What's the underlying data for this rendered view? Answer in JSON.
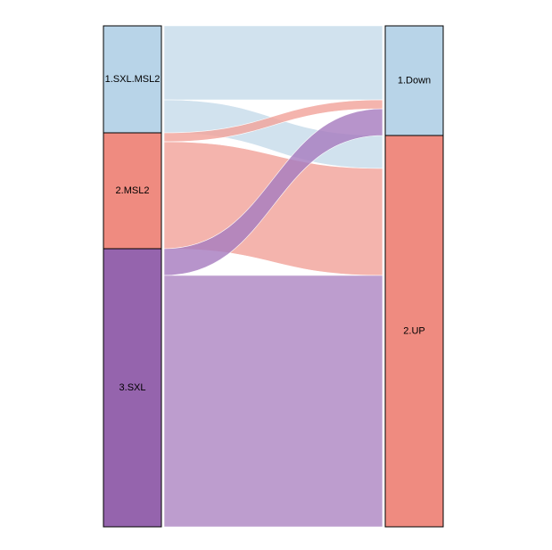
{
  "chart_data": {
    "type": "alluvial",
    "left_axis": {
      "nodes": [
        {
          "label": "1.SXL.MSL2",
          "value": 120,
          "color": "#b8d4e8"
        },
        {
          "label": "2.MSL2",
          "value": 130,
          "color": "#ef8b80"
        },
        {
          "label": "3.SXL",
          "value": 312,
          "color": "#9564ad"
        }
      ]
    },
    "right_axis": {
      "nodes": [
        {
          "label": "1.Down",
          "value": 123,
          "color": "#b8d4e8"
        },
        {
          "label": "2.UP",
          "value": 439,
          "color": "#ef8b80"
        }
      ]
    },
    "flows": [
      {
        "from": "1.SXL.MSL2",
        "to": "1.Down",
        "value": 83,
        "color": "#c7dcea"
      },
      {
        "from": "1.SXL.MSL2",
        "to": "2.UP",
        "value": 37,
        "color": "#c7dcea"
      },
      {
        "from": "2.MSL2",
        "to": "1.Down",
        "value": 10,
        "color": "#f2a49b"
      },
      {
        "from": "2.MSL2",
        "to": "2.UP",
        "value": 120,
        "color": "#f2a49b"
      },
      {
        "from": "3.SXL",
        "to": "1.Down",
        "value": 30,
        "color": "#a77cbf"
      },
      {
        "from": "3.SXL",
        "to": "2.UP",
        "value": 282,
        "color": "#ae88c3"
      }
    ]
  }
}
